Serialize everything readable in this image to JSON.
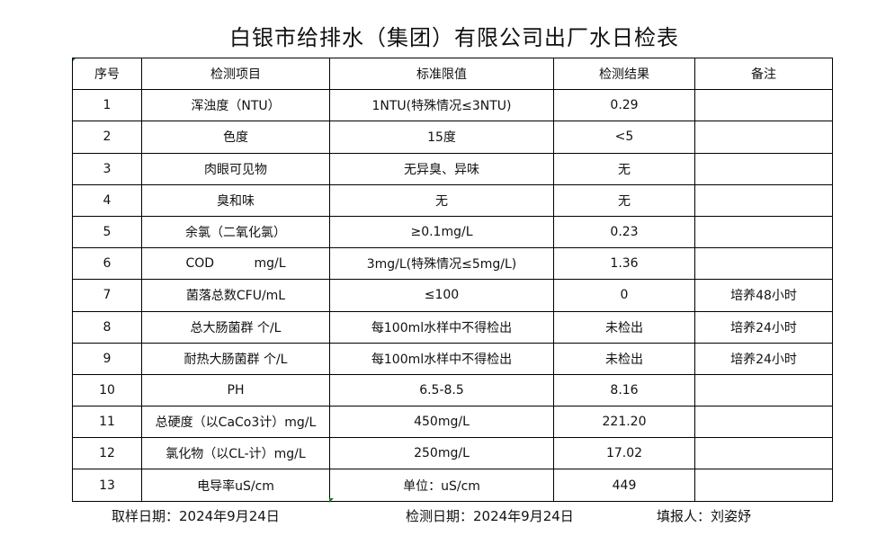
{
  "title": "白银市给排水（集团）有限公司出厂水日检表",
  "table": {
    "headers": [
      "序号",
      "检测项目",
      "标准限值",
      "检测结果",
      "备注"
    ],
    "rows": [
      [
        "1",
        "浑浊度（NTU）",
        "1NTU(特殊情况≤3NTU)",
        "0.29",
        ""
      ],
      [
        "2",
        "色度",
        "15度",
        "<5",
        ""
      ],
      [
        "3",
        "肉眼可见物",
        "无异臭、异味",
        "无",
        ""
      ],
      [
        "4",
        "臭和味",
        "无",
        "无",
        ""
      ],
      [
        "5",
        "余氯（二氧化氯）",
        "≥0.1mg/L",
        "0.23",
        ""
      ],
      [
        "6",
        "COD          mg/L",
        "3mg/L(特殊情况≤5mg/L)",
        "1.36",
        ""
      ],
      [
        "7",
        "菌落总数CFU/mL",
        "≤100",
        "0",
        "培养48小时"
      ],
      [
        "8",
        "总大肠菌群 个/L",
        "每100ml水样中不得检出",
        "未检出",
        "培养24小时"
      ],
      [
        "9",
        "耐热大肠菌群 个/L",
        "每100ml水样中不得检出",
        "未检出",
        "培养24小时"
      ],
      [
        "10",
        "PH",
        "6.5-8.5",
        "8.16",
        ""
      ],
      [
        "11",
        "总硬度（以CaCo3计）mg/L",
        "450mg/L",
        "221.20",
        ""
      ],
      [
        "12",
        "氯化物（以CL-计）mg/L",
        "250mg/L",
        "17.02",
        ""
      ],
      [
        "13",
        "电导率uS/cm",
        "单位：uS/cm",
        "449",
        ""
      ]
    ]
  },
  "footer": {
    "sample_date": "取样日期：2024年9月24日",
    "test_date": "检测日期：2024年9月24日",
    "reporter": "填报人：刘姿妤"
  }
}
